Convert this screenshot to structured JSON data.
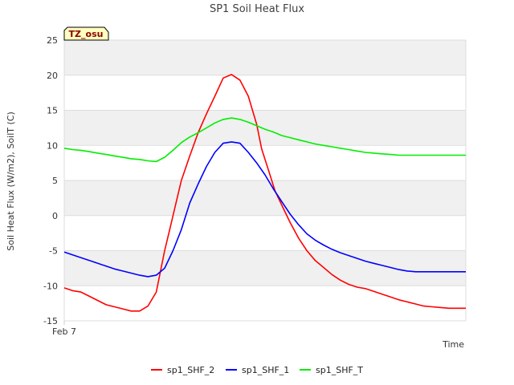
{
  "chart_data": {
    "type": "line",
    "title": "SP1 Soil Heat Flux",
    "xlabel": "Time",
    "ylabel": "Soil Heat Flux (W/m2), SoilT (C)",
    "badge": "TZ_osu",
    "ylim": [
      -15,
      25
    ],
    "yticks": [
      -15,
      -10,
      -5,
      0,
      5,
      10,
      15,
      20,
      25
    ],
    "xlim": [
      0,
      24
    ],
    "xticks": [
      {
        "value": 0,
        "label": "Feb 7"
      }
    ],
    "grid": true,
    "legend_position": "bottom-center",
    "series": [
      {
        "name": "sp1_SHF_2",
        "color": "#ff0000",
        "x": [
          0,
          0.5,
          1,
          1.5,
          2,
          2.5,
          3,
          3.5,
          4,
          4.5,
          5,
          5.5,
          6,
          6.3,
          6.6,
          7,
          7.5,
          8,
          8.5,
          9,
          9.5,
          10,
          10.5,
          11,
          11.5,
          11.8,
          12.2,
          12.6,
          13,
          13.5,
          14,
          14.5,
          15,
          15.5,
          16,
          16.5,
          17,
          17.5,
          18,
          18.5,
          19,
          19.5,
          20,
          20.5,
          21,
          21.5,
          22,
          22.5,
          23,
          23.5,
          24
        ],
        "y": [
          -10.3,
          -10.7,
          -10.9,
          -11.5,
          -12.1,
          -12.7,
          -13.0,
          -13.3,
          -13.6,
          -13.6,
          -12.9,
          -10.9,
          -5.0,
          -2.0,
          1.0,
          5.0,
          8.5,
          11.8,
          14.5,
          17.0,
          19.6,
          20.1,
          19.3,
          17.0,
          13.0,
          9.5,
          6.5,
          3.5,
          1.5,
          -1.0,
          -3.2,
          -5.0,
          -6.4,
          -7.4,
          -8.4,
          -9.2,
          -9.8,
          -10.2,
          -10.4,
          -10.8,
          -11.2,
          -11.6,
          -12.0,
          -12.3,
          -12.6,
          -12.9,
          -13.0,
          -13.1,
          -13.2,
          -13.2,
          -13.2
        ]
      },
      {
        "name": "sp1_SHF_1",
        "color": "#0000ff",
        "x": [
          0,
          0.5,
          1,
          1.5,
          2,
          2.5,
          3,
          3.5,
          4,
          4.5,
          5,
          5.5,
          6,
          6.5,
          7,
          7.5,
          8,
          8.5,
          9,
          9.5,
          10,
          10.5,
          11,
          11.5,
          12,
          12.5,
          13,
          13.5,
          14,
          14.5,
          15,
          15.5,
          16,
          16.5,
          17,
          17.5,
          18,
          18.5,
          19,
          19.5,
          20,
          20.5,
          21,
          21.5,
          22,
          22.5,
          23,
          23.5,
          24
        ],
        "y": [
          -5.2,
          -5.6,
          -6.0,
          -6.4,
          -6.8,
          -7.2,
          -7.6,
          -7.9,
          -8.2,
          -8.5,
          -8.7,
          -8.5,
          -7.5,
          -5.0,
          -2.0,
          1.8,
          4.5,
          7.0,
          9.0,
          10.3,
          10.5,
          10.3,
          9.0,
          7.5,
          5.8,
          3.8,
          2.0,
          0.2,
          -1.3,
          -2.6,
          -3.5,
          -4.2,
          -4.8,
          -5.3,
          -5.7,
          -6.1,
          -6.5,
          -6.8,
          -7.1,
          -7.4,
          -7.7,
          -7.9,
          -8.0,
          -8.0,
          -8.0,
          -8.0,
          -8.0,
          -8.0,
          -8.0
        ]
      },
      {
        "name": "sp1_SHF_T",
        "color": "#00ee00",
        "x": [
          0,
          0.5,
          1,
          1.5,
          2,
          2.5,
          3,
          3.5,
          4,
          4.5,
          5,
          5.5,
          6,
          6.5,
          7,
          7.5,
          8,
          8.5,
          9,
          9.5,
          10,
          10.5,
          11,
          11.5,
          12,
          12.5,
          13,
          13.5,
          14,
          14.5,
          15,
          15.5,
          16,
          16.5,
          17,
          17.5,
          18,
          18.5,
          19,
          19.5,
          20,
          20.5,
          21,
          21.5,
          22,
          22.5,
          23,
          23.5,
          24
        ],
        "y": [
          9.6,
          9.4,
          9.3,
          9.1,
          8.9,
          8.7,
          8.5,
          8.3,
          8.1,
          8.0,
          7.8,
          7.7,
          8.3,
          9.3,
          10.4,
          11.2,
          11.8,
          12.5,
          13.2,
          13.7,
          13.9,
          13.7,
          13.3,
          12.8,
          12.3,
          11.9,
          11.4,
          11.1,
          10.8,
          10.5,
          10.2,
          10.0,
          9.8,
          9.6,
          9.4,
          9.2,
          9.0,
          8.9,
          8.8,
          8.7,
          8.6,
          8.6,
          8.6,
          8.6,
          8.6,
          8.6,
          8.6,
          8.6,
          8.6
        ]
      }
    ]
  }
}
